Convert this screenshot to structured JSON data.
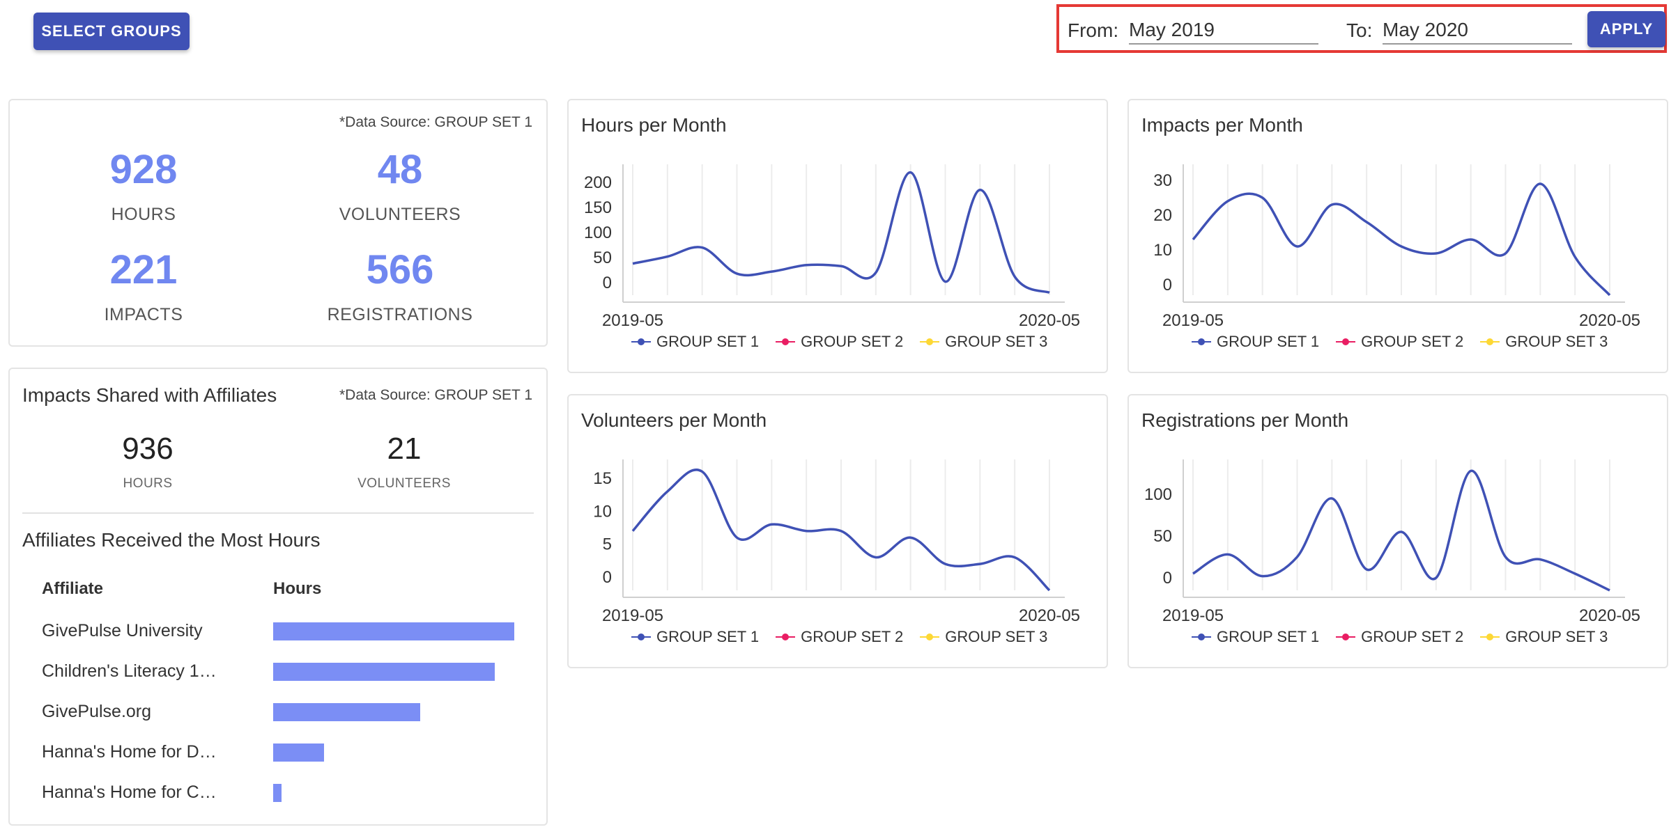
{
  "header": {
    "select_groups_label": "SELECT GROUPS",
    "from_label": "From:",
    "from_value": "May 2019",
    "to_label": "To:",
    "to_value": "May 2020",
    "apply_label": "APPLY"
  },
  "summary": {
    "source": "*Data Source: GROUP SET 1",
    "stats": [
      {
        "value": "928",
        "label": "HOURS"
      },
      {
        "value": "48",
        "label": "VOLUNTEERS"
      },
      {
        "value": "221",
        "label": "IMPACTS"
      },
      {
        "value": "566",
        "label": "REGISTRATIONS"
      }
    ]
  },
  "affiliates": {
    "title": "Impacts Shared with Affiliates",
    "source": "*Data Source: GROUP SET 1",
    "hours_value": "936",
    "hours_label": "HOURS",
    "volunteers_value": "21",
    "volunteers_label": "VOLUNTEERS",
    "most_hours_title": "Affiliates Received the Most Hours",
    "col_affiliate": "Affiliate",
    "col_hours": "Hours",
    "rows": [
      {
        "name": "GivePulse University",
        "fraction": 1.0
      },
      {
        "name": "Children's Literacy 1…",
        "fraction": 0.92
      },
      {
        "name": "GivePulse.org",
        "fraction": 0.61
      },
      {
        "name": "Hanna's Home for D…",
        "fraction": 0.21
      },
      {
        "name": "Hanna's Home for C…",
        "fraction": 0.035
      }
    ]
  },
  "legend": [
    {
      "name": "GROUP SET 1",
      "color": "#3f51b5"
    },
    {
      "name": "GROUP SET 2",
      "color": "#e91e63"
    },
    {
      "name": "GROUP SET 3",
      "color": "#fdd835"
    }
  ],
  "chart_data": [
    {
      "type": "line",
      "title": "Hours per Month",
      "x": [
        "2019-05",
        "2019-06",
        "2019-07",
        "2019-08",
        "2019-09",
        "2019-10",
        "2019-11",
        "2019-12",
        "2020-01",
        "2020-02",
        "2020-03",
        "2020-04",
        "2020-05"
      ],
      "x_tick_labels": [
        "2019-05",
        "2020-05"
      ],
      "y_ticks": [
        "0",
        "50",
        "100",
        "150",
        "200"
      ],
      "ylim": [
        -25,
        225
      ],
      "series": [
        {
          "color": "#3f51b5",
          "values": [
            38,
            52,
            70,
            18,
            22,
            35,
            33,
            20,
            220,
            2,
            185,
            12,
            -20
          ]
        }
      ]
    },
    {
      "type": "line",
      "title": "Impacts per Month",
      "x": [
        "2019-05",
        "2019-06",
        "2019-07",
        "2019-08",
        "2019-09",
        "2019-10",
        "2019-11",
        "2019-12",
        "2020-01",
        "2020-02",
        "2020-03",
        "2020-04",
        "2020-05"
      ],
      "x_tick_labels": [
        "2019-05",
        "2020-05"
      ],
      "y_ticks": [
        "0",
        "10",
        "20",
        "30"
      ],
      "ylim": [
        -3,
        33
      ],
      "series": [
        {
          "color": "#3f51b5",
          "values": [
            13,
            24,
            25,
            11,
            23,
            18,
            11,
            9,
            13,
            9,
            29,
            8,
            -3
          ]
        }
      ]
    },
    {
      "type": "line",
      "title": "Volunteers per Month",
      "x": [
        "2019-05",
        "2019-06",
        "2019-07",
        "2019-08",
        "2019-09",
        "2019-10",
        "2019-11",
        "2019-12",
        "2020-01",
        "2020-02",
        "2020-03",
        "2020-04",
        "2020-05"
      ],
      "x_tick_labels": [
        "2019-05",
        "2020-05"
      ],
      "y_ticks": [
        "0",
        "5",
        "10",
        "15"
      ],
      "ylim": [
        -2,
        17
      ],
      "series": [
        {
          "color": "#3f51b5",
          "values": [
            7,
            13,
            16,
            6,
            8,
            7,
            7,
            3,
            6,
            2,
            2,
            3,
            -2
          ]
        }
      ]
    },
    {
      "type": "line",
      "title": "Registrations per Month",
      "x": [
        "2019-05",
        "2019-06",
        "2019-07",
        "2019-08",
        "2019-09",
        "2019-10",
        "2019-11",
        "2019-12",
        "2020-01",
        "2020-02",
        "2020-03",
        "2020-04",
        "2020-05"
      ],
      "x_tick_labels": [
        "2019-05",
        "2020-05"
      ],
      "y_ticks": [
        "0",
        "50",
        "100"
      ],
      "ylim": [
        -15,
        135
      ],
      "series": [
        {
          "color": "#3f51b5",
          "values": [
            5,
            28,
            2,
            25,
            95,
            10,
            55,
            0,
            128,
            25,
            22,
            5,
            -15
          ]
        }
      ]
    }
  ]
}
